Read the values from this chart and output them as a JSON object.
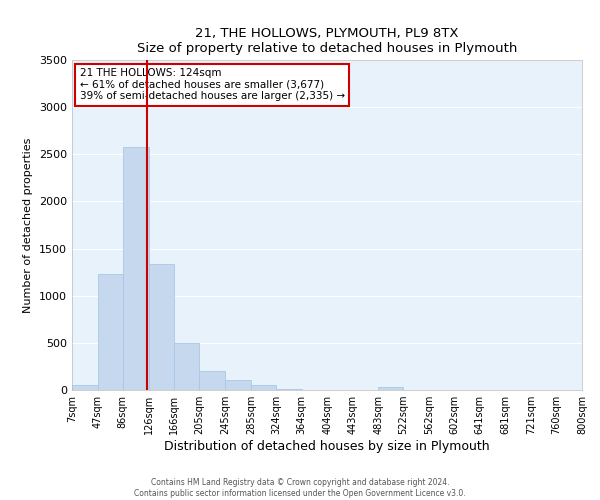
{
  "title": "21, THE HOLLOWS, PLYMOUTH, PL9 8TX",
  "subtitle": "Size of property relative to detached houses in Plymouth",
  "xlabel": "Distribution of detached houses by size in Plymouth",
  "ylabel": "Number of detached properties",
  "bar_color": "#c5d8ed",
  "bar_edge_color": "#a8c8e8",
  "background_color": "#e8f2fb",
  "grid_color": "#ffffff",
  "bin_labels": [
    "7sqm",
    "47sqm",
    "86sqm",
    "126sqm",
    "166sqm",
    "205sqm",
    "245sqm",
    "285sqm",
    "324sqm",
    "364sqm",
    "404sqm",
    "443sqm",
    "483sqm",
    "522sqm",
    "562sqm",
    "602sqm",
    "641sqm",
    "681sqm",
    "721sqm",
    "760sqm",
    "800sqm"
  ],
  "bar_heights": [
    50,
    1230,
    2580,
    1340,
    500,
    200,
    110,
    50,
    15,
    0,
    0,
    0,
    30,
    0,
    0,
    0,
    0,
    0,
    0,
    0,
    0
  ],
  "vline_x": 124,
  "vline_color": "#cc0000",
  "annotation_title": "21 THE HOLLOWS: 124sqm",
  "annotation_line1": "← 61% of detached houses are smaller (3,677)",
  "annotation_line2": "39% of semi-detached houses are larger (2,335) →",
  "annotation_box_color": "#cc0000",
  "ylim": [
    0,
    3500
  ],
  "yticks": [
    0,
    500,
    1000,
    1500,
    2000,
    2500,
    3000,
    3500
  ],
  "bin_edges": [
    7,
    47,
    86,
    126,
    166,
    205,
    245,
    285,
    324,
    364,
    404,
    443,
    483,
    522,
    562,
    602,
    641,
    681,
    721,
    760,
    800
  ],
  "footer_line1": "Contains HM Land Registry data © Crown copyright and database right 2024.",
  "footer_line2": "Contains public sector information licensed under the Open Government Licence v3.0."
}
